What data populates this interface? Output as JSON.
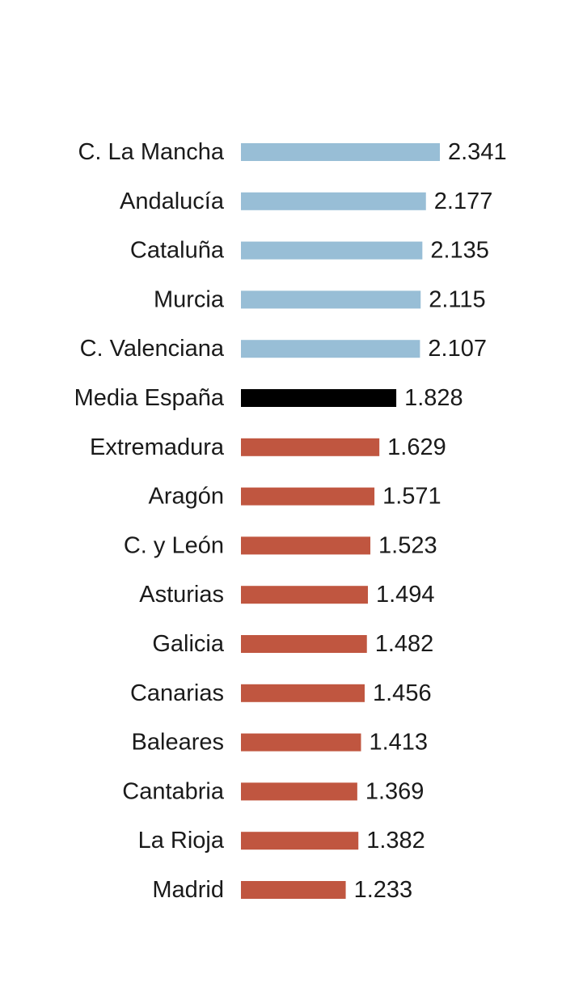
{
  "chart_data": {
    "type": "bar",
    "orientation": "horizontal",
    "categories": [
      "C. La Mancha",
      "Andalucía",
      "Cataluña",
      "Murcia",
      "C. Valenciana",
      "Media España",
      "Extremadura",
      "Aragón",
      "C. y León",
      "Asturias",
      "Galicia",
      "Canarias",
      "Baleares",
      "Cantabria",
      "La Rioja",
      "Madrid"
    ],
    "values": [
      2341,
      2177,
      2135,
      2115,
      2107,
      1828,
      1629,
      1571,
      1523,
      1494,
      1482,
      1456,
      1413,
      1369,
      1382,
      1233
    ],
    "value_labels": [
      "2.341",
      "2.177",
      "2.135",
      "2.115",
      "2.107",
      "1.828",
      "1.629",
      "1.571",
      "1.523",
      "1.494",
      "1.482",
      "1.456",
      "1.413",
      "1.369",
      "1.382",
      "1.233"
    ],
    "bar_groups": [
      "above",
      "above",
      "above",
      "above",
      "above",
      "average",
      "below",
      "below",
      "below",
      "below",
      "below",
      "below",
      "below",
      "below",
      "below",
      "below"
    ],
    "colors": {
      "above": "#98bed6",
      "average": "#000000",
      "below": "#c05640"
    },
    "xlim": [
      0,
      2341
    ],
    "title": "",
    "xlabel": "",
    "ylabel": "",
    "grid": false,
    "legend": false
  }
}
